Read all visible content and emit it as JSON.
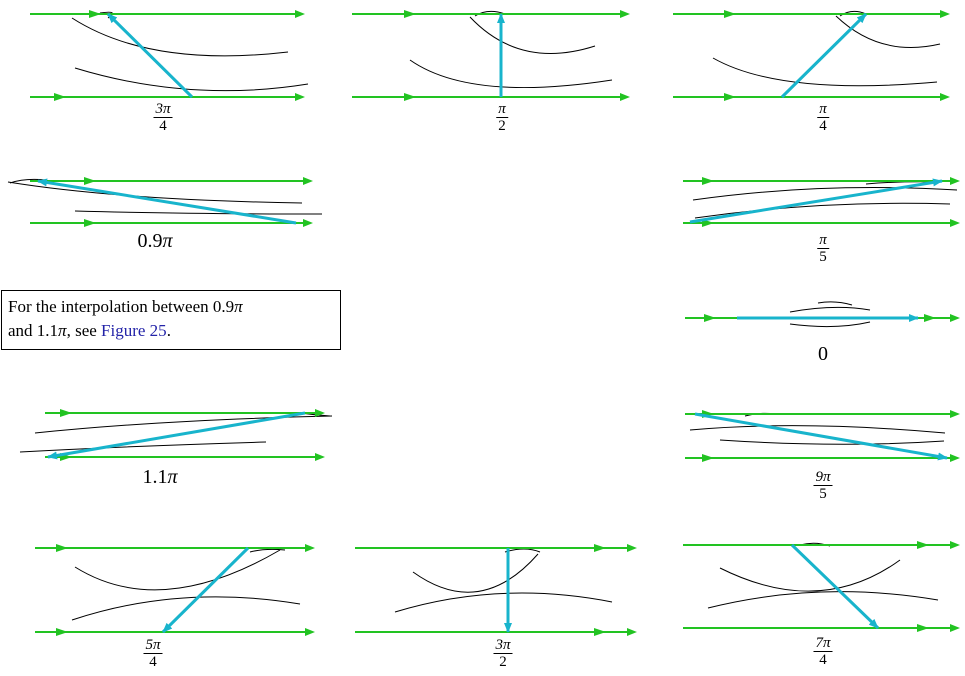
{
  "colors": {
    "flow_line": "#22c322",
    "vector": "#18b4cc",
    "curve": "#000000",
    "link": "#2323a8"
  },
  "note": {
    "t1": "For the interpolation between 0.9",
    "pi": "π",
    "t2": "and 1.1",
    "t3": ", see ",
    "link": "Figure 25",
    "t4": "."
  },
  "panels": [
    {
      "id": "3pi-4",
      "label": {
        "kind": "frac",
        "num": "3π",
        "den": "4"
      }
    },
    {
      "id": "pi-2",
      "label": {
        "kind": "frac",
        "num": "π",
        "den": "2"
      }
    },
    {
      "id": "pi-4",
      "label": {
        "kind": "frac",
        "num": "π",
        "den": "4"
      }
    },
    {
      "id": "0.9pi",
      "label": {
        "kind": "plain",
        "text": "0.9",
        "mul": "π"
      }
    },
    {
      "id": "pi-5",
      "label": {
        "kind": "frac",
        "num": "π",
        "den": "5"
      }
    },
    {
      "id": "zero",
      "label": {
        "kind": "plain",
        "text": "0",
        "mul": ""
      }
    },
    {
      "id": "1.1pi",
      "label": {
        "kind": "plain",
        "text": "1.1",
        "mul": "π"
      }
    },
    {
      "id": "9pi-5",
      "label": {
        "kind": "frac",
        "num": "9π",
        "den": "5"
      }
    },
    {
      "id": "5pi-4",
      "label": {
        "kind": "frac",
        "num": "5π",
        "den": "4"
      }
    },
    {
      "id": "3pi-2",
      "label": {
        "kind": "frac",
        "num": "3π",
        "den": "2"
      }
    },
    {
      "id": "7pi-4",
      "label": {
        "kind": "frac",
        "num": "7π",
        "den": "4"
      }
    }
  ]
}
